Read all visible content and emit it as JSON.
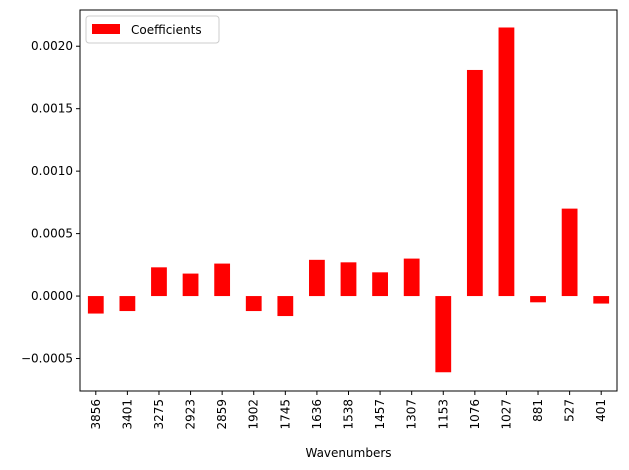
{
  "chart_data": {
    "type": "bar",
    "title": "",
    "xlabel": "Wavenumbers",
    "ylabel": "",
    "categories": [
      "3856",
      "3401",
      "3275",
      "2923",
      "2859",
      "1902",
      "1745",
      "1636",
      "1538",
      "1457",
      "1307",
      "1153",
      "1076",
      "1027",
      "881",
      "527",
      "401"
    ],
    "series": [
      {
        "name": "Coefficients",
        "color": "#ff0000",
        "values": [
          -0.00014,
          -0.00012,
          0.00023,
          0.00018,
          0.00026,
          -0.00012,
          -0.00016,
          0.00029,
          0.00027,
          0.00019,
          0.0003,
          -0.00061,
          0.00181,
          0.00215,
          -5e-05,
          0.0007,
          -6e-05
        ]
      }
    ],
    "ylim": [
      -0.00076,
      0.00229
    ],
    "yticks": [
      -0.0005,
      0.0,
      0.0005,
      0.001,
      0.0015,
      0.002
    ],
    "ytick_labels": [
      "−0.0005",
      "0.0000",
      "0.0005",
      "0.0010",
      "0.0015",
      "0.0020"
    ],
    "grid": false,
    "legend_position": "top-left"
  }
}
